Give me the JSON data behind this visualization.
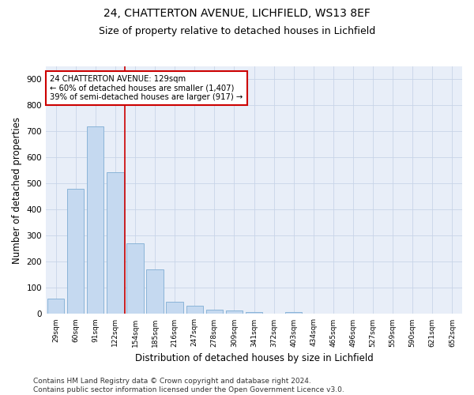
{
  "title1": "24, CHATTERTON AVENUE, LICHFIELD, WS13 8EF",
  "title2": "Size of property relative to detached houses in Lichfield",
  "xlabel": "Distribution of detached houses by size in Lichfield",
  "ylabel": "Number of detached properties",
  "categories": [
    "29sqm",
    "60sqm",
    "91sqm",
    "122sqm",
    "154sqm",
    "185sqm",
    "216sqm",
    "247sqm",
    "278sqm",
    "309sqm",
    "341sqm",
    "372sqm",
    "403sqm",
    "434sqm",
    "465sqm",
    "496sqm",
    "527sqm",
    "559sqm",
    "590sqm",
    "621sqm",
    "652sqm"
  ],
  "values": [
    60,
    480,
    720,
    543,
    271,
    171,
    46,
    32,
    15,
    13,
    8,
    0,
    8,
    0,
    0,
    0,
    0,
    0,
    0,
    0,
    0
  ],
  "bar_color": "#c5d9f0",
  "bar_edge_color": "#8ab4d8",
  "vline_x": 3.5,
  "vline_color": "#cc0000",
  "annotation_line1": "24 CHATTERTON AVENUE: 129sqm",
  "annotation_line2": "← 60% of detached houses are smaller (1,407)",
  "annotation_line3": "39% of semi-detached houses are larger (917) →",
  "annotation_box_color": "#cc0000",
  "ylim": [
    0,
    950
  ],
  "yticks": [
    0,
    100,
    200,
    300,
    400,
    500,
    600,
    700,
    800,
    900
  ],
  "grid_color": "#c8d4e8",
  "bg_color": "#e8eef8",
  "footer": "Contains HM Land Registry data © Crown copyright and database right 2024.\nContains public sector information licensed under the Open Government Licence v3.0.",
  "title1_fontsize": 10,
  "title2_fontsize": 9,
  "xlabel_fontsize": 8.5,
  "ylabel_fontsize": 8.5,
  "footer_fontsize": 6.5
}
